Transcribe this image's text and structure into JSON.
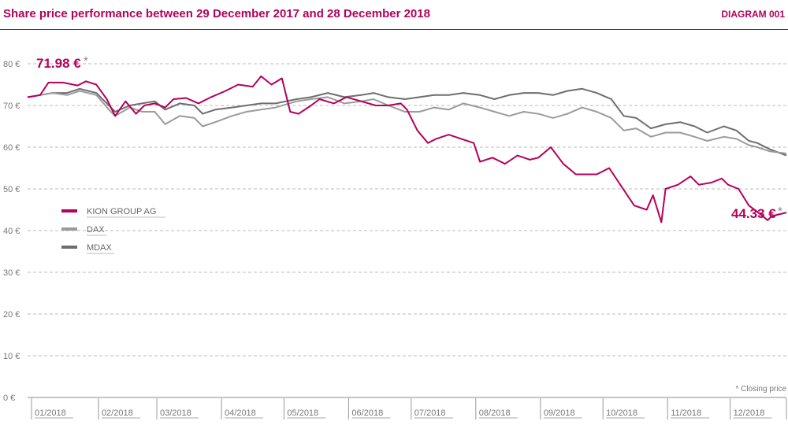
{
  "header": {
    "title": "Share price performance between 29 December 2017 and 28 December 2018",
    "diagram_label": "DIAGRAM 001"
  },
  "annotations": {
    "start_value": "71.98 €",
    "end_value": "44.33 €",
    "star": "*",
    "note": "* Closing price"
  },
  "colors": {
    "kion": "#b5005b",
    "dax": "#9b9b9b",
    "mdax": "#6e6e6e",
    "grid": "#bbbbbb",
    "title": "#b5005b"
  },
  "chart_data": {
    "type": "line",
    "title": "Share price performance between 29 December 2017 and 28 December 2018",
    "xlabel": "",
    "ylabel": "",
    "ylim": [
      0,
      80
    ],
    "y_ticks": [
      0,
      10,
      20,
      30,
      40,
      50,
      60,
      70,
      80
    ],
    "y_tick_labels": [
      "0 €",
      "10 €",
      "20 €",
      "30 €",
      "40 €",
      "50 €",
      "60 €",
      "70 €",
      "80 €"
    ],
    "months": [
      "01/2018",
      "02/2018",
      "03/2018",
      "04/2018",
      "05/2018",
      "06/2018",
      "07/2018",
      "08/2018",
      "09/2018",
      "10/2018",
      "11/2018",
      "12/2018"
    ],
    "grid": "horizontal dashed",
    "legend_position": "left-middle",
    "series": [
      {
        "name": "KION GROUP AG",
        "color": "#b5005b",
        "points": [
          [
            "2017-12-29",
            71.98
          ],
          [
            "2018-01-04",
            72.5
          ],
          [
            "2018-01-08",
            75.5
          ],
          [
            "2018-01-15",
            75.5
          ],
          [
            "2018-01-22",
            74.8
          ],
          [
            "2018-01-26",
            75.8
          ],
          [
            "2018-01-31",
            75.0
          ],
          [
            "2018-02-05",
            71.5
          ],
          [
            "2018-02-09",
            67.5
          ],
          [
            "2018-02-14",
            71.0
          ],
          [
            "2018-02-19",
            68.0
          ],
          [
            "2018-02-23",
            70.0
          ],
          [
            "2018-02-28",
            70.5
          ],
          [
            "2018-03-05",
            69.5
          ],
          [
            "2018-03-09",
            71.5
          ],
          [
            "2018-03-15",
            71.8
          ],
          [
            "2018-03-21",
            70.5
          ],
          [
            "2018-03-27",
            72.0
          ],
          [
            "2018-04-03",
            73.5
          ],
          [
            "2018-04-09",
            75.0
          ],
          [
            "2018-04-16",
            74.5
          ],
          [
            "2018-04-20",
            77.0
          ],
          [
            "2018-04-25",
            75.0
          ],
          [
            "2018-04-30",
            76.5
          ],
          [
            "2018-05-04",
            68.5
          ],
          [
            "2018-05-08",
            68.0
          ],
          [
            "2018-05-14",
            70.0
          ],
          [
            "2018-05-18",
            71.5
          ],
          [
            "2018-05-25",
            70.5
          ],
          [
            "2018-05-31",
            72.0
          ],
          [
            "2018-06-07",
            71.0
          ],
          [
            "2018-06-14",
            70.0
          ],
          [
            "2018-06-20",
            70.0
          ],
          [
            "2018-06-26",
            70.5
          ],
          [
            "2018-06-29",
            69.0
          ],
          [
            "2018-07-04",
            64.0
          ],
          [
            "2018-07-09",
            61.0
          ],
          [
            "2018-07-13",
            62.0
          ],
          [
            "2018-07-19",
            63.0
          ],
          [
            "2018-07-25",
            62.0
          ],
          [
            "2018-07-31",
            61.0
          ],
          [
            "2018-08-03",
            56.5
          ],
          [
            "2018-08-09",
            57.5
          ],
          [
            "2018-08-15",
            56.0
          ],
          [
            "2018-08-21",
            58.0
          ],
          [
            "2018-08-27",
            57.0
          ],
          [
            "2018-08-31",
            57.5
          ],
          [
            "2018-09-06",
            60.0
          ],
          [
            "2018-09-12",
            56.0
          ],
          [
            "2018-09-18",
            53.5
          ],
          [
            "2018-09-24",
            53.5
          ],
          [
            "2018-09-28",
            53.5
          ],
          [
            "2018-10-04",
            55.0
          ],
          [
            "2018-10-10",
            50.5
          ],
          [
            "2018-10-16",
            46.0
          ],
          [
            "2018-10-22",
            45.0
          ],
          [
            "2018-10-25",
            48.5
          ],
          [
            "2018-10-29",
            42.0
          ],
          [
            "2018-10-31",
            50.0
          ],
          [
            "2018-11-06",
            51.0
          ],
          [
            "2018-11-12",
            53.0
          ],
          [
            "2018-11-16",
            51.0
          ],
          [
            "2018-11-22",
            51.5
          ],
          [
            "2018-11-27",
            52.5
          ],
          [
            "2018-11-30",
            51.0
          ],
          [
            "2018-12-05",
            50.0
          ],
          [
            "2018-12-10",
            46.0
          ],
          [
            "2018-12-14",
            44.5
          ],
          [
            "2018-12-19",
            42.5
          ],
          [
            "2018-12-21",
            43.5
          ],
          [
            "2018-12-28",
            44.33
          ]
        ]
      },
      {
        "name": "DAX",
        "color": "#9b9b9b",
        "points": [
          [
            "2017-12-29",
            71.98
          ],
          [
            "2018-01-04",
            72.5
          ],
          [
            "2018-01-10",
            73.0
          ],
          [
            "2018-01-17",
            72.5
          ],
          [
            "2018-01-23",
            73.5
          ],
          [
            "2018-01-31",
            72.5
          ],
          [
            "2018-02-06",
            69.0
          ],
          [
            "2018-02-09",
            67.5
          ],
          [
            "2018-02-16",
            69.5
          ],
          [
            "2018-02-22",
            68.5
          ],
          [
            "2018-02-28",
            68.5
          ],
          [
            "2018-03-05",
            65.5
          ],
          [
            "2018-03-12",
            67.5
          ],
          [
            "2018-03-19",
            67.0
          ],
          [
            "2018-03-23",
            65.0
          ],
          [
            "2018-03-29",
            66.0
          ],
          [
            "2018-04-06",
            67.5
          ],
          [
            "2018-04-13",
            68.5
          ],
          [
            "2018-04-20",
            69.0
          ],
          [
            "2018-04-27",
            69.5
          ],
          [
            "2018-05-07",
            71.0
          ],
          [
            "2018-05-14",
            71.5
          ],
          [
            "2018-05-22",
            72.0
          ],
          [
            "2018-05-30",
            70.5
          ],
          [
            "2018-06-07",
            71.0
          ],
          [
            "2018-06-13",
            71.5
          ],
          [
            "2018-06-20",
            70.0
          ],
          [
            "2018-06-28",
            68.5
          ],
          [
            "2018-07-05",
            68.5
          ],
          [
            "2018-07-12",
            69.5
          ],
          [
            "2018-07-19",
            69.0
          ],
          [
            "2018-07-26",
            70.5
          ],
          [
            "2018-08-03",
            69.5
          ],
          [
            "2018-08-10",
            68.5
          ],
          [
            "2018-08-17",
            67.5
          ],
          [
            "2018-08-24",
            68.5
          ],
          [
            "2018-08-31",
            68.0
          ],
          [
            "2018-09-07",
            67.0
          ],
          [
            "2018-09-14",
            68.0
          ],
          [
            "2018-09-21",
            69.5
          ],
          [
            "2018-09-28",
            68.5
          ],
          [
            "2018-10-05",
            67.0
          ],
          [
            "2018-10-11",
            64.0
          ],
          [
            "2018-10-17",
            64.5
          ],
          [
            "2018-10-24",
            62.5
          ],
          [
            "2018-10-31",
            63.5
          ],
          [
            "2018-11-07",
            63.5
          ],
          [
            "2018-11-14",
            62.5
          ],
          [
            "2018-11-20",
            61.5
          ],
          [
            "2018-11-28",
            62.5
          ],
          [
            "2018-12-04",
            62.0
          ],
          [
            "2018-12-10",
            60.5
          ],
          [
            "2018-12-14",
            60.0
          ],
          [
            "2018-12-20",
            59.0
          ],
          [
            "2018-12-28",
            58.5
          ]
        ]
      },
      {
        "name": "MDAX",
        "color": "#6e6e6e",
        "points": [
          [
            "2017-12-29",
            71.98
          ],
          [
            "2018-01-04",
            72.5
          ],
          [
            "2018-01-10",
            73.0
          ],
          [
            "2018-01-17",
            73.0
          ],
          [
            "2018-01-23",
            74.0
          ],
          [
            "2018-01-31",
            73.0
          ],
          [
            "2018-02-06",
            70.0
          ],
          [
            "2018-02-09",
            68.5
          ],
          [
            "2018-02-16",
            70.0
          ],
          [
            "2018-02-22",
            70.5
          ],
          [
            "2018-02-28",
            71.0
          ],
          [
            "2018-03-05",
            69.0
          ],
          [
            "2018-03-12",
            70.5
          ],
          [
            "2018-03-19",
            70.0
          ],
          [
            "2018-03-23",
            68.0
          ],
          [
            "2018-03-29",
            69.0
          ],
          [
            "2018-04-06",
            69.5
          ],
          [
            "2018-04-13",
            70.0
          ],
          [
            "2018-04-20",
            70.5
          ],
          [
            "2018-04-27",
            70.5
          ],
          [
            "2018-05-07",
            71.5
          ],
          [
            "2018-05-14",
            72.0
          ],
          [
            "2018-05-22",
            73.0
          ],
          [
            "2018-05-30",
            72.0
          ],
          [
            "2018-06-07",
            72.5
          ],
          [
            "2018-06-13",
            73.0
          ],
          [
            "2018-06-20",
            72.0
          ],
          [
            "2018-06-28",
            71.5
          ],
          [
            "2018-07-05",
            72.0
          ],
          [
            "2018-07-12",
            72.5
          ],
          [
            "2018-07-19",
            72.5
          ],
          [
            "2018-07-26",
            73.0
          ],
          [
            "2018-08-03",
            72.5
          ],
          [
            "2018-08-10",
            71.5
          ],
          [
            "2018-08-17",
            72.5
          ],
          [
            "2018-08-24",
            73.0
          ],
          [
            "2018-08-31",
            73.0
          ],
          [
            "2018-09-07",
            72.5
          ],
          [
            "2018-09-14",
            73.5
          ],
          [
            "2018-09-21",
            74.0
          ],
          [
            "2018-09-28",
            73.0
          ],
          [
            "2018-10-05",
            71.5
          ],
          [
            "2018-10-11",
            67.5
          ],
          [
            "2018-10-17",
            67.0
          ],
          [
            "2018-10-24",
            64.5
          ],
          [
            "2018-10-31",
            65.5
          ],
          [
            "2018-11-07",
            66.0
          ],
          [
            "2018-11-14",
            65.0
          ],
          [
            "2018-11-20",
            63.5
          ],
          [
            "2018-11-28",
            65.0
          ],
          [
            "2018-12-04",
            64.0
          ],
          [
            "2018-12-10",
            61.5
          ],
          [
            "2018-12-14",
            61.0
          ],
          [
            "2018-12-20",
            59.5
          ],
          [
            "2018-12-28",
            58.0
          ]
        ]
      }
    ]
  }
}
